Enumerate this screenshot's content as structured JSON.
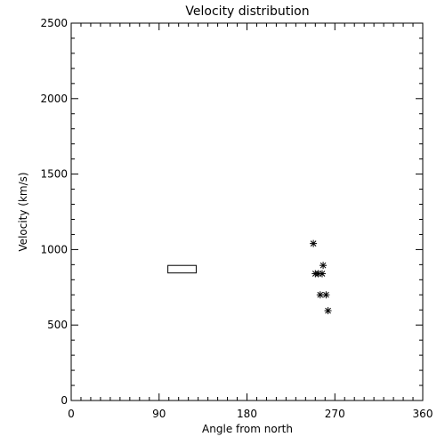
{
  "chart_data": {
    "type": "scatter",
    "title": "Velocity distribution",
    "xlabel": "Angle from north",
    "ylabel": "Velocity (km/s)",
    "xlim": [
      0,
      360
    ],
    "ylim": [
      0,
      2500
    ],
    "xticks": [
      0,
      90,
      180,
      270,
      360
    ],
    "xtick_labels": [
      "0",
      "90",
      "180",
      "270",
      "360"
    ],
    "yticks": [
      0,
      500,
      1000,
      1500,
      2000,
      2500
    ],
    "ytick_labels": [
      "0",
      "500",
      "1000",
      "1500",
      "2000",
      "2500"
    ],
    "grid": false,
    "legend": "none",
    "series": [
      {
        "marker": "asterisk",
        "points": [
          {
            "x": 248,
            "y": 1040
          },
          {
            "x": 258,
            "y": 895
          },
          {
            "x": 250,
            "y": 840
          },
          {
            "x": 253,
            "y": 840
          },
          {
            "x": 257,
            "y": 840
          },
          {
            "x": 255,
            "y": 700
          },
          {
            "x": 261,
            "y": 700
          },
          {
            "x": 263,
            "y": 595
          }
        ]
      }
    ],
    "box": {
      "x_min": 99,
      "x_max": 128,
      "y_min": 845,
      "y_max": 895
    }
  }
}
